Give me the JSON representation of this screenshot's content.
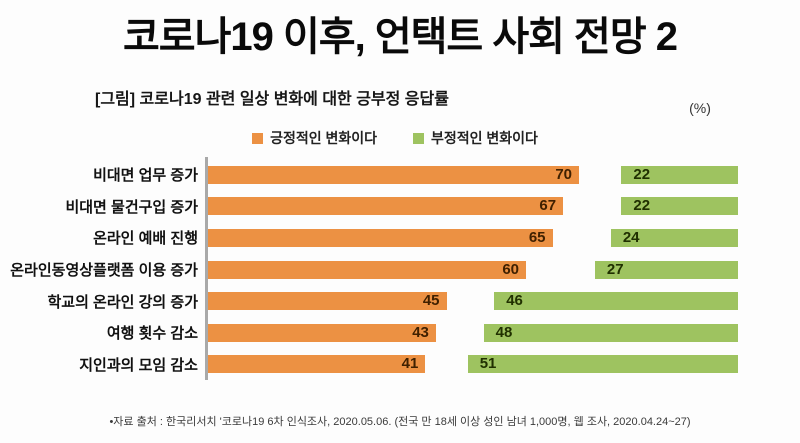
{
  "slide": {
    "title": "코로나19 이후, 언택트 사회 전망 2",
    "figure_caption": "[그림] 코로나19 관련 일상 변화에 대한 긍부정 응답률",
    "unit_label": "(%)",
    "source_note": "•자료 출처 : 한국리서치 '코로나19 6차 인식조사, 2020.05.06. (전국 만 18세 이상 성인 남녀 1,000명, 웹 조사, 2020.04.24~27)"
  },
  "chart_data": {
    "type": "bar",
    "orientation": "horizontal",
    "title": "[그림] 코로나19 관련 일상 변화에 대한 긍부정 응답률",
    "unit": "(%)",
    "xlim": [
      0,
      100
    ],
    "grid": false,
    "legend_position": "top-center",
    "axis_color": "#A9A9A9",
    "categories": [
      "비대면 업무 증가",
      "비대면 물건구입 증가",
      "온라인 예배 진행",
      "온라인동영상플랫폼 이용 증가",
      "학교의 온라인 강의 증가",
      "여행 횟수 감소",
      "지인과의 모임 감소"
    ],
    "series": [
      {
        "name": "긍정적인 변화이다",
        "color": "#EC9143",
        "label_color": "#3F2000",
        "anchor": "left",
        "values": [
          70,
          67,
          65,
          60,
          45,
          43,
          41
        ]
      },
      {
        "name": "부정적인 변화이다",
        "color": "#9EC360",
        "label_color": "#203000",
        "anchor": "right",
        "values": [
          22,
          22,
          24,
          27,
          46,
          48,
          51
        ]
      }
    ]
  }
}
